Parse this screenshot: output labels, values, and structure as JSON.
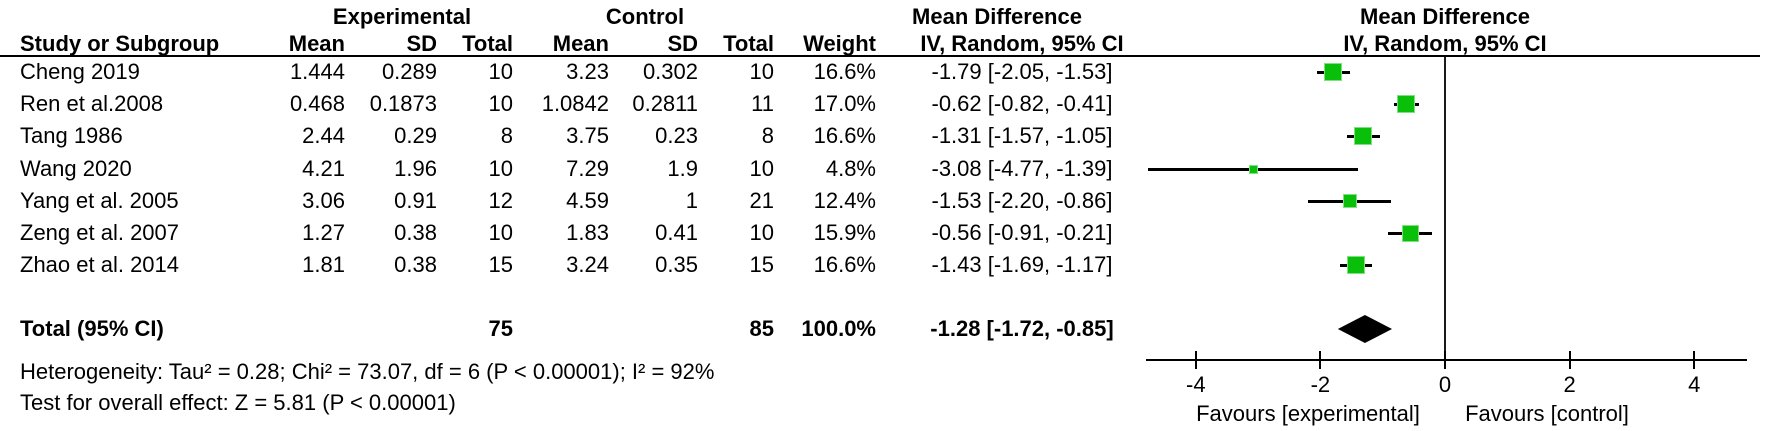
{
  "header": {
    "group_experimental": "Experimental",
    "group_control": "Control",
    "effect_title": "Mean Difference",
    "effect_subtitle": "IV, Random, 95% CI",
    "plot_title": "Mean Difference",
    "plot_subtitle": "IV, Random, 95% CI",
    "col_study": "Study or Subgroup",
    "col_mean": "Mean",
    "col_sd": "SD",
    "col_total": "Total",
    "col_weight": "Weight"
  },
  "studies": [
    {
      "name": "Cheng 2019",
      "e_mean": "1.444",
      "e_sd": "0.289",
      "e_total": "10",
      "c_mean": "3.23",
      "c_sd": "0.302",
      "c_total": "10",
      "weight": "16.6%",
      "ci_text": "-1.79 [-2.05, -1.53]"
    },
    {
      "name": "Ren et al.2008",
      "e_mean": "0.468",
      "e_sd": "0.1873",
      "e_total": "10",
      "c_mean": "1.0842",
      "c_sd": "0.2811",
      "c_total": "11",
      "weight": "17.0%",
      "ci_text": "-0.62 [-0.82, -0.41]"
    },
    {
      "name": "Tang 1986",
      "e_mean": "2.44",
      "e_sd": "0.29",
      "e_total": "8",
      "c_mean": "3.75",
      "c_sd": "0.23",
      "c_total": "8",
      "weight": "16.6%",
      "ci_text": "-1.31 [-1.57, -1.05]"
    },
    {
      "name": "Wang 2020",
      "e_mean": "4.21",
      "e_sd": "1.96",
      "e_total": "10",
      "c_mean": "7.29",
      "c_sd": "1.9",
      "c_total": "10",
      "weight": "4.8%",
      "ci_text": "-3.08 [-4.77, -1.39]"
    },
    {
      "name": "Yang et al. 2005",
      "e_mean": "3.06",
      "e_sd": "0.91",
      "e_total": "12",
      "c_mean": "4.59",
      "c_sd": "1",
      "c_total": "21",
      "weight": "12.4%",
      "ci_text": "-1.53 [-2.20, -0.86]"
    },
    {
      "name": "Zeng et al. 2007",
      "e_mean": "1.27",
      "e_sd": "0.38",
      "e_total": "10",
      "c_mean": "1.83",
      "c_sd": "0.41",
      "c_total": "10",
      "weight": "15.9%",
      "ci_text": "-0.56 [-0.91, -0.21]"
    },
    {
      "name": "Zhao et al. 2014",
      "e_mean": "1.81",
      "e_sd": "0.38",
      "e_total": "15",
      "c_mean": "3.24",
      "c_sd": "0.35",
      "c_total": "15",
      "weight": "16.6%",
      "ci_text": "-1.43 [-1.69, -1.17]"
    }
  ],
  "total_row": {
    "label": "Total (95% CI)",
    "e_total": "75",
    "c_total": "85",
    "weight": "100.0%",
    "ci_text": "-1.28 [-1.72, -0.85]"
  },
  "footer": {
    "heterogeneity": "Heterogeneity: Tau² = 0.28; Chi² = 73.07, df = 6 (P < 0.00001); I² = 92%",
    "overall_effect": "Test for overall effect: Z = 5.81 (P < 0.00001)",
    "favours_left": "Favours [experimental]",
    "favours_right": "Favours [control]"
  },
  "chart_data": {
    "type": "forest",
    "title": "Mean Difference",
    "model": "IV, Random, 95% CI",
    "xlim": [
      -4.8,
      4.85
    ],
    "ticks": [
      -4,
      -2,
      0,
      2,
      4
    ],
    "marker_color": "#0abf0a",
    "studies": [
      {
        "name": "Cheng 2019",
        "md": -1.79,
        "lo": -2.05,
        "hi": -1.53,
        "weight": 16.6
      },
      {
        "name": "Ren et al.2008",
        "md": -0.62,
        "lo": -0.82,
        "hi": -0.41,
        "weight": 17.0
      },
      {
        "name": "Tang 1986",
        "md": -1.31,
        "lo": -1.57,
        "hi": -1.05,
        "weight": 16.6
      },
      {
        "name": "Wang 2020",
        "md": -3.08,
        "lo": -4.77,
        "hi": -1.39,
        "weight": 4.8
      },
      {
        "name": "Yang et al. 2005",
        "md": -1.53,
        "lo": -2.2,
        "hi": -0.86,
        "weight": 12.4
      },
      {
        "name": "Zeng et al. 2007",
        "md": -0.56,
        "lo": -0.91,
        "hi": -0.21,
        "weight": 15.9
      },
      {
        "name": "Zhao et al. 2014",
        "md": -1.43,
        "lo": -1.69,
        "hi": -1.17,
        "weight": 16.6
      }
    ],
    "total": {
      "md": -1.28,
      "lo": -1.72,
      "hi": -0.85,
      "weight": 100.0
    }
  }
}
